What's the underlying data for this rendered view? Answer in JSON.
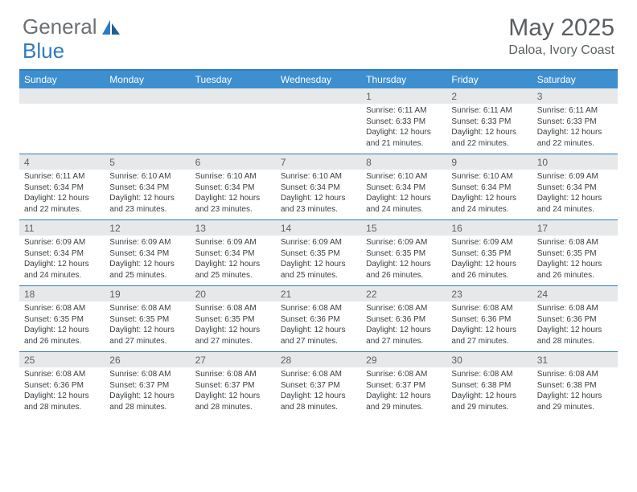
{
  "brand": {
    "part1": "General",
    "part2": "Blue",
    "logo_color": "#2f7bbf",
    "text_color": "#6b7074"
  },
  "title": "May 2025",
  "subtitle": "Daloa, Ivory Coast",
  "accent": "#3d8fcf",
  "border": "#2f7bbf",
  "daynum_bg": "#e7e8e9",
  "dow": [
    "Sunday",
    "Monday",
    "Tuesday",
    "Wednesday",
    "Thursday",
    "Friday",
    "Saturday"
  ],
  "weeks": [
    [
      {
        "n": "",
        "lines": []
      },
      {
        "n": "",
        "lines": []
      },
      {
        "n": "",
        "lines": []
      },
      {
        "n": "",
        "lines": []
      },
      {
        "n": "1",
        "lines": [
          "Sunrise: 6:11 AM",
          "Sunset: 6:33 PM",
          "Daylight: 12 hours and 21 minutes."
        ]
      },
      {
        "n": "2",
        "lines": [
          "Sunrise: 6:11 AM",
          "Sunset: 6:33 PM",
          "Daylight: 12 hours and 22 minutes."
        ]
      },
      {
        "n": "3",
        "lines": [
          "Sunrise: 6:11 AM",
          "Sunset: 6:33 PM",
          "Daylight: 12 hours and 22 minutes."
        ]
      }
    ],
    [
      {
        "n": "4",
        "lines": [
          "Sunrise: 6:11 AM",
          "Sunset: 6:34 PM",
          "Daylight: 12 hours and 22 minutes."
        ]
      },
      {
        "n": "5",
        "lines": [
          "Sunrise: 6:10 AM",
          "Sunset: 6:34 PM",
          "Daylight: 12 hours and 23 minutes."
        ]
      },
      {
        "n": "6",
        "lines": [
          "Sunrise: 6:10 AM",
          "Sunset: 6:34 PM",
          "Daylight: 12 hours and 23 minutes."
        ]
      },
      {
        "n": "7",
        "lines": [
          "Sunrise: 6:10 AM",
          "Sunset: 6:34 PM",
          "Daylight: 12 hours and 23 minutes."
        ]
      },
      {
        "n": "8",
        "lines": [
          "Sunrise: 6:10 AM",
          "Sunset: 6:34 PM",
          "Daylight: 12 hours and 24 minutes."
        ]
      },
      {
        "n": "9",
        "lines": [
          "Sunrise: 6:10 AM",
          "Sunset: 6:34 PM",
          "Daylight: 12 hours and 24 minutes."
        ]
      },
      {
        "n": "10",
        "lines": [
          "Sunrise: 6:09 AM",
          "Sunset: 6:34 PM",
          "Daylight: 12 hours and 24 minutes."
        ]
      }
    ],
    [
      {
        "n": "11",
        "lines": [
          "Sunrise: 6:09 AM",
          "Sunset: 6:34 PM",
          "Daylight: 12 hours and 24 minutes."
        ]
      },
      {
        "n": "12",
        "lines": [
          "Sunrise: 6:09 AM",
          "Sunset: 6:34 PM",
          "Daylight: 12 hours and 25 minutes."
        ]
      },
      {
        "n": "13",
        "lines": [
          "Sunrise: 6:09 AM",
          "Sunset: 6:34 PM",
          "Daylight: 12 hours and 25 minutes."
        ]
      },
      {
        "n": "14",
        "lines": [
          "Sunrise: 6:09 AM",
          "Sunset: 6:35 PM",
          "Daylight: 12 hours and 25 minutes."
        ]
      },
      {
        "n": "15",
        "lines": [
          "Sunrise: 6:09 AM",
          "Sunset: 6:35 PM",
          "Daylight: 12 hours and 26 minutes."
        ]
      },
      {
        "n": "16",
        "lines": [
          "Sunrise: 6:09 AM",
          "Sunset: 6:35 PM",
          "Daylight: 12 hours and 26 minutes."
        ]
      },
      {
        "n": "17",
        "lines": [
          "Sunrise: 6:08 AM",
          "Sunset: 6:35 PM",
          "Daylight: 12 hours and 26 minutes."
        ]
      }
    ],
    [
      {
        "n": "18",
        "lines": [
          "Sunrise: 6:08 AM",
          "Sunset: 6:35 PM",
          "Daylight: 12 hours and 26 minutes."
        ]
      },
      {
        "n": "19",
        "lines": [
          "Sunrise: 6:08 AM",
          "Sunset: 6:35 PM",
          "Daylight: 12 hours and 27 minutes."
        ]
      },
      {
        "n": "20",
        "lines": [
          "Sunrise: 6:08 AM",
          "Sunset: 6:35 PM",
          "Daylight: 12 hours and 27 minutes."
        ]
      },
      {
        "n": "21",
        "lines": [
          "Sunrise: 6:08 AM",
          "Sunset: 6:36 PM",
          "Daylight: 12 hours and 27 minutes."
        ]
      },
      {
        "n": "22",
        "lines": [
          "Sunrise: 6:08 AM",
          "Sunset: 6:36 PM",
          "Daylight: 12 hours and 27 minutes."
        ]
      },
      {
        "n": "23",
        "lines": [
          "Sunrise: 6:08 AM",
          "Sunset: 6:36 PM",
          "Daylight: 12 hours and 27 minutes."
        ]
      },
      {
        "n": "24",
        "lines": [
          "Sunrise: 6:08 AM",
          "Sunset: 6:36 PM",
          "Daylight: 12 hours and 28 minutes."
        ]
      }
    ],
    [
      {
        "n": "25",
        "lines": [
          "Sunrise: 6:08 AM",
          "Sunset: 6:36 PM",
          "Daylight: 12 hours and 28 minutes."
        ]
      },
      {
        "n": "26",
        "lines": [
          "Sunrise: 6:08 AM",
          "Sunset: 6:37 PM",
          "Daylight: 12 hours and 28 minutes."
        ]
      },
      {
        "n": "27",
        "lines": [
          "Sunrise: 6:08 AM",
          "Sunset: 6:37 PM",
          "Daylight: 12 hours and 28 minutes."
        ]
      },
      {
        "n": "28",
        "lines": [
          "Sunrise: 6:08 AM",
          "Sunset: 6:37 PM",
          "Daylight: 12 hours and 28 minutes."
        ]
      },
      {
        "n": "29",
        "lines": [
          "Sunrise: 6:08 AM",
          "Sunset: 6:37 PM",
          "Daylight: 12 hours and 29 minutes."
        ]
      },
      {
        "n": "30",
        "lines": [
          "Sunrise: 6:08 AM",
          "Sunset: 6:38 PM",
          "Daylight: 12 hours and 29 minutes."
        ]
      },
      {
        "n": "31",
        "lines": [
          "Sunrise: 6:08 AM",
          "Sunset: 6:38 PM",
          "Daylight: 12 hours and 29 minutes."
        ]
      }
    ]
  ]
}
